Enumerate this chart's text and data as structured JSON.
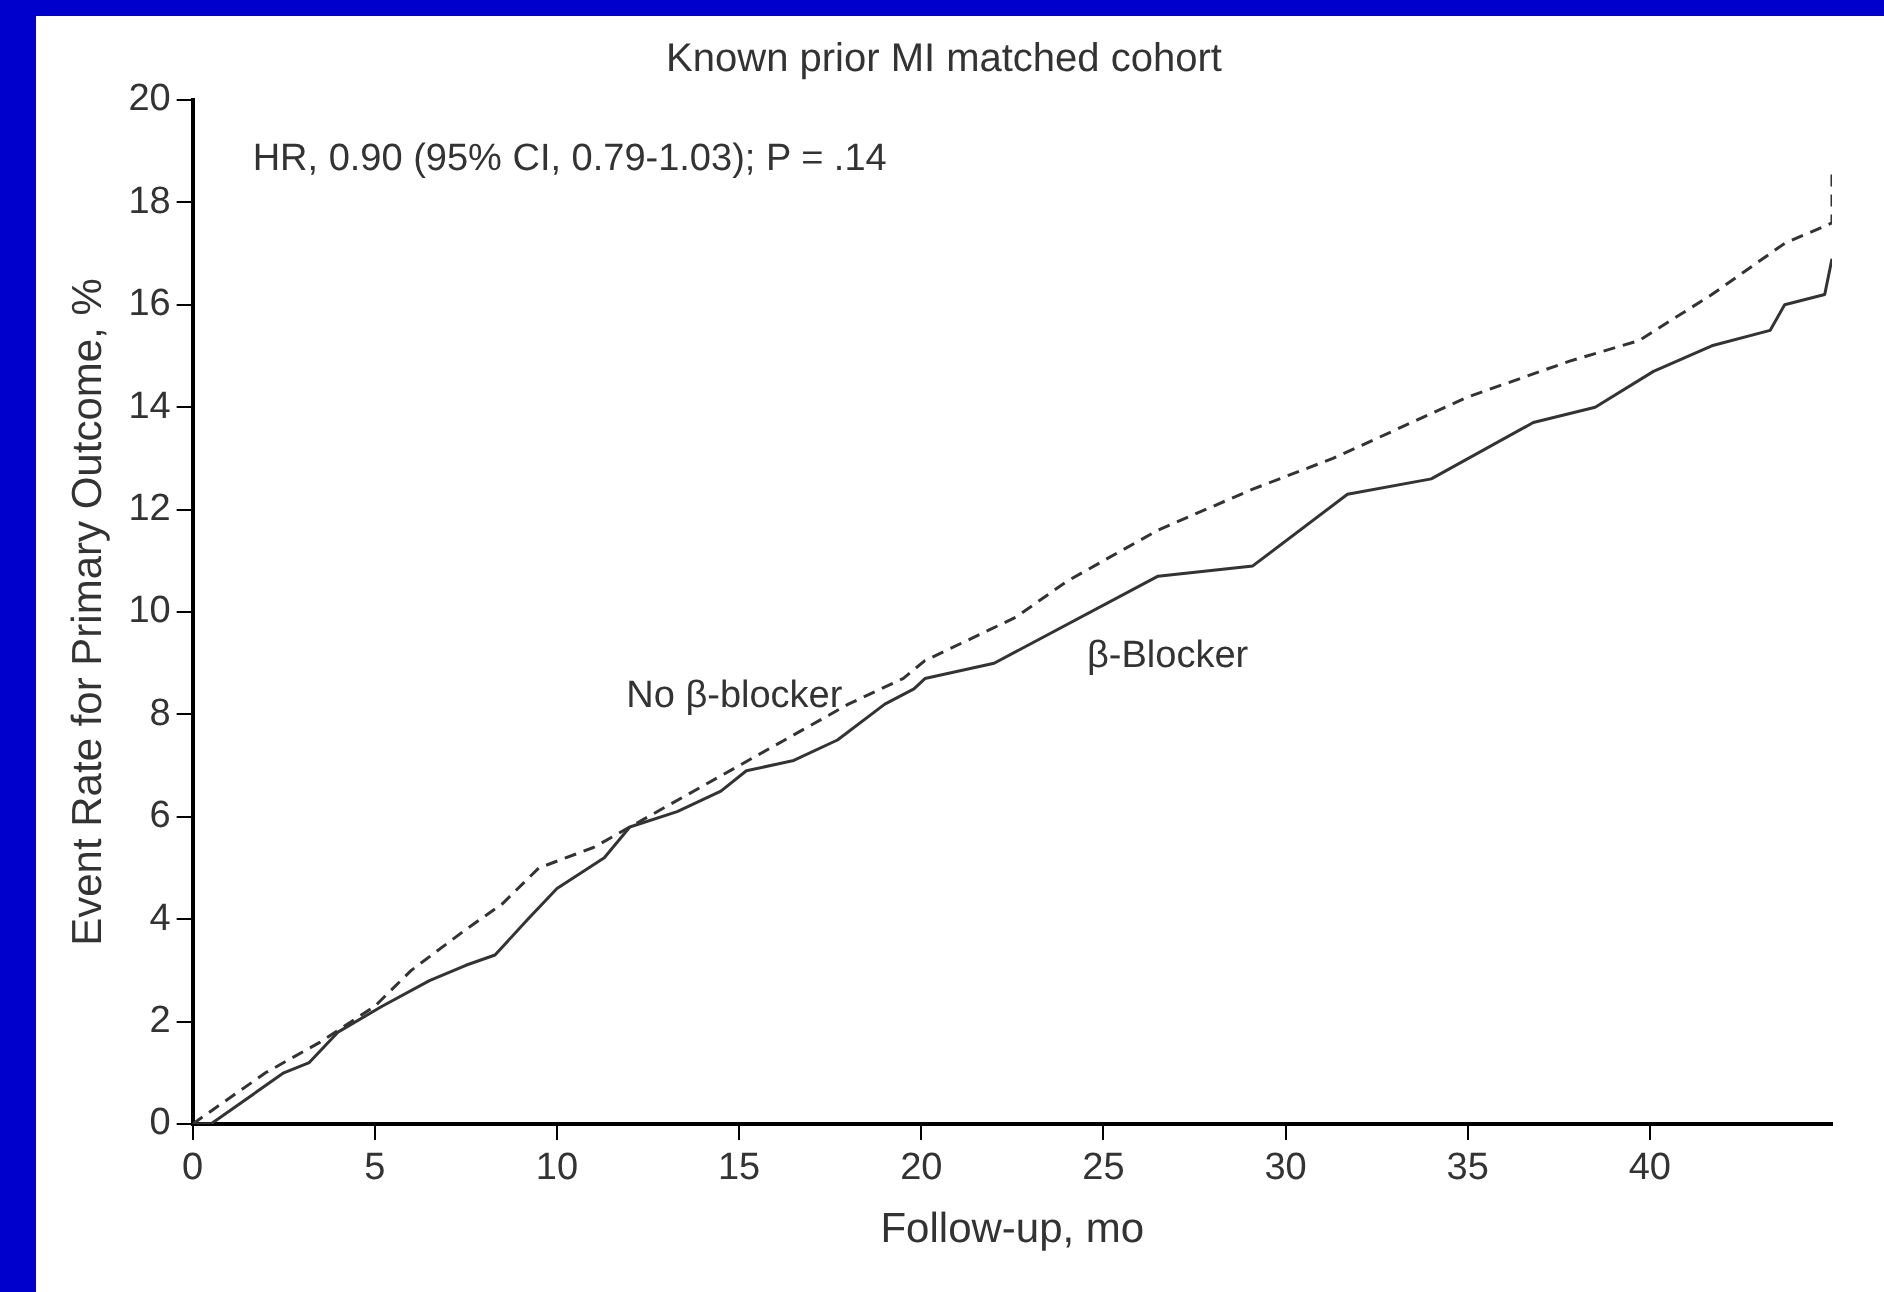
{
  "chart_data": {
    "type": "line",
    "title": "Known prior MI matched cohort",
    "xlabel": "Follow-up, mo",
    "ylabel": "Event Rate for Primary Outcome, %",
    "annotations": [
      "HR, 0.90 (95% CI, 0.79-1.03); P = .14"
    ],
    "xlim": [
      0,
      45
    ],
    "xticks": [
      0,
      5,
      10,
      15,
      20,
      25,
      30,
      35,
      40
    ],
    "ylim": [
      0,
      20
    ],
    "yticks": [
      0,
      2,
      4,
      6,
      8,
      10,
      12,
      14,
      16,
      18,
      20
    ],
    "grid": false,
    "legend": false,
    "marker": "none",
    "series": [
      {
        "name": "No β-blocker",
        "color": "#333333",
        "line_style": "dashed",
        "x": [
          0,
          2,
          3.5,
          5,
          6,
          7.5,
          8.5,
          9.5,
          11,
          12.5,
          14,
          15.5,
          16.5,
          18,
          19.5,
          20.1,
          22.6,
          24,
          26.5,
          29.1,
          31.3,
          35,
          37.8,
          39.7,
          41.7,
          43.7,
          45,
          45
        ],
        "values": [
          0,
          1,
          1.6,
          2.3,
          3,
          3.8,
          4.3,
          5,
          5.4,
          6,
          6.6,
          7.2,
          7.6,
          8.2,
          8.7,
          9.05,
          9.9,
          10.6,
          11.6,
          12.4,
          13,
          14.2,
          14.9,
          15.3,
          16.2,
          17.2,
          17.6,
          18.6
        ]
      },
      {
        "name": "β-Blocker",
        "color": "#333333",
        "line_style": "solid",
        "x": [
          0,
          0.5,
          2.5,
          3.2,
          4,
          5.2,
          6.5,
          7.5,
          8.3,
          9.2,
          10,
          11.3,
          12,
          13.3,
          14.5,
          15.2,
          16.5,
          17.7,
          19,
          19.8,
          20.1,
          22,
          26.5,
          29.1,
          31.7,
          34,
          36.8,
          38.5,
          40.1,
          41.7,
          43.3,
          43.7,
          44.8,
          45
        ],
        "values": [
          0,
          0,
          1,
          1.2,
          1.8,
          2.3,
          2.8,
          3.1,
          3.3,
          4,
          4.6,
          5.2,
          5.8,
          6.1,
          6.5,
          6.9,
          7.1,
          7.5,
          8.2,
          8.5,
          8.7,
          9,
          10.7,
          10.9,
          12.3,
          12.6,
          13.7,
          14,
          14.7,
          15.2,
          15.5,
          16,
          16.2,
          16.9
        ]
      }
    ]
  }
}
